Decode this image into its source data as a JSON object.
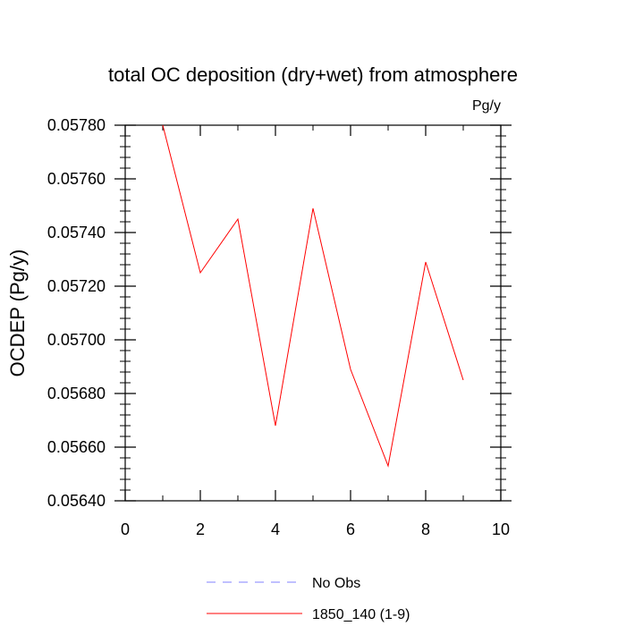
{
  "chart_data": {
    "type": "line",
    "title": "total OC deposition (dry+wet) from atmosphere",
    "units_label": "Pg/y",
    "xlabel": "",
    "ylabel": "OCDEP  (Pg/y)",
    "xlim": [
      0,
      10
    ],
    "ylim": [
      0.0564,
      0.0578
    ],
    "x_ticks": [
      0,
      2,
      4,
      6,
      8,
      10
    ],
    "x_tick_labels": [
      "0",
      "2",
      "4",
      "6",
      "8",
      "10"
    ],
    "y_ticks": [
      0.0564,
      0.0566,
      0.0568,
      0.057,
      0.0572,
      0.0574,
      0.0576,
      0.0578
    ],
    "y_tick_labels": [
      "0.05640",
      "0.05660",
      "0.05680",
      "0.05700",
      "0.05720",
      "0.05740",
      "0.05760",
      "0.05780"
    ],
    "grid": false,
    "legend_position": "bottom-center",
    "series": [
      {
        "name": "1850_140 (1-9)",
        "color": "#ff0000",
        "style": "solid",
        "x": [
          1,
          2,
          3,
          4,
          5,
          6,
          7,
          8,
          9
        ],
        "y": [
          0.0578,
          0.05725,
          0.05745,
          0.05668,
          0.05749,
          0.05689,
          0.05653,
          0.05729,
          0.05685
        ]
      }
    ],
    "legend": [
      {
        "label": "No Obs",
        "color": "#8080ff",
        "style": "dashed"
      },
      {
        "label": "1850_140 (1-9)",
        "color": "#ff0000",
        "style": "solid"
      }
    ]
  }
}
